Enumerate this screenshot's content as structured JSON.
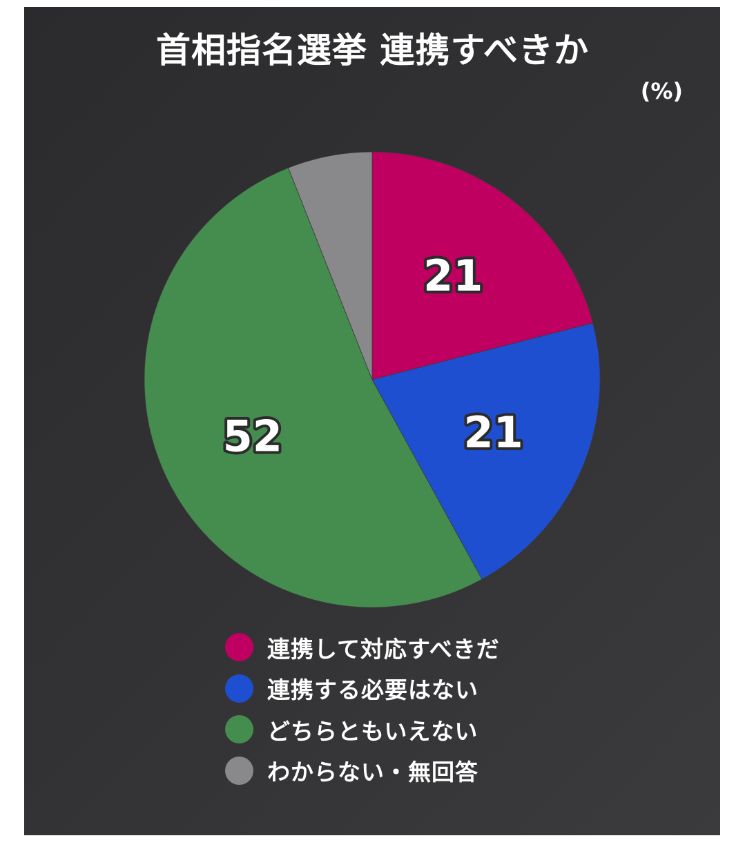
{
  "chart_data": {
    "type": "pie",
    "title": "首相指名選挙 連携すべきか",
    "unit_label": "(%)",
    "slices": [
      {
        "label": "連携して対応すべきだ",
        "value": 21,
        "value_label": "21",
        "color": "#bf0060"
      },
      {
        "label": "連携する必要はない",
        "value": 21,
        "value_label": "21",
        "color": "#1f4fd1"
      },
      {
        "label": "どちらともいえない",
        "value": 52,
        "value_label": "52",
        "color": "#458c4f"
      },
      {
        "label": "わからない・無回答",
        "value": 6,
        "value_label": "",
        "color": "#89888b"
      }
    ],
    "start_angle_deg": 0,
    "direction": "clockwise",
    "legend_position": "bottom"
  }
}
